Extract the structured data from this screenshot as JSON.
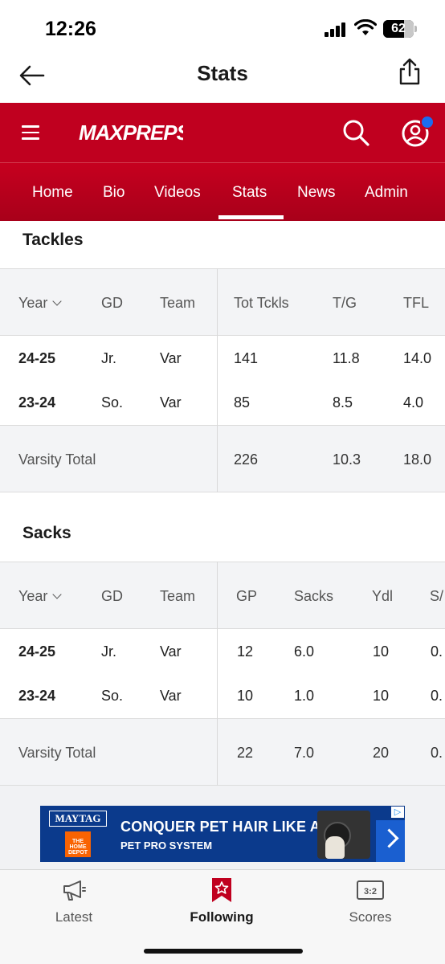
{
  "status_bar": {
    "time": "12:26",
    "battery": "62"
  },
  "title_bar": {
    "title": "Stats"
  },
  "brand": {
    "logo_text": "MAXPREPS",
    "color": "#c0001f"
  },
  "nav_tabs": [
    {
      "label": "Home"
    },
    {
      "label": "Bio"
    },
    {
      "label": "Videos"
    },
    {
      "label": "Stats",
      "active": true
    },
    {
      "label": "News"
    },
    {
      "label": "Admin"
    }
  ],
  "tackles": {
    "title": "Tackles",
    "columns": [
      "Year",
      "GD",
      "Team",
      "Tot Tckls",
      "T/G",
      "TFL"
    ],
    "rows": [
      {
        "year": "24-25",
        "gd": "Jr.",
        "team": "Var",
        "c1": "141",
        "c2": "11.8",
        "c3": "14.0"
      },
      {
        "year": "23-24",
        "gd": "So.",
        "team": "Var",
        "c1": "85",
        "c2": "8.5",
        "c3": "4.0"
      }
    ],
    "total": {
      "label": "Varsity Total",
      "c1": "226",
      "c2": "10.3",
      "c3": "18.0"
    }
  },
  "sacks": {
    "title": "Sacks",
    "columns": [
      "Year",
      "GD",
      "Team",
      "GP",
      "Sacks",
      "Ydl",
      "S/"
    ],
    "rows": [
      {
        "year": "24-25",
        "gd": "Jr.",
        "team": "Var",
        "c1": "12",
        "c2": "6.0",
        "c3": "10",
        "c4": "0."
      },
      {
        "year": "23-24",
        "gd": "So.",
        "team": "Var",
        "c1": "10",
        "c2": "1.0",
        "c3": "10",
        "c4": "0."
      }
    ],
    "total": {
      "label": "Varsity Total",
      "c1": "22",
      "c2": "7.0",
      "c3": "20",
      "c4": "0."
    }
  },
  "ad": {
    "brand": "MAYTAG",
    "retailer": "THE HOME DEPOT",
    "headline": "CONQUER PET HAIR LIKE A PRO",
    "sub": "PET PRO SYSTEM",
    "adchoice": "▷"
  },
  "tab_bar": [
    {
      "label": "Latest",
      "icon": "megaphone-icon"
    },
    {
      "label": "Following",
      "icon": "bookmark-star-icon",
      "active": true
    },
    {
      "label": "Scores",
      "icon": "scoreboard-icon"
    }
  ]
}
